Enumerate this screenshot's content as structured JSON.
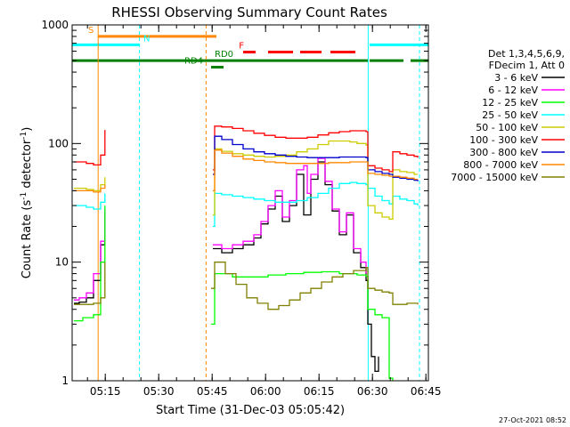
{
  "chart_data": {
    "type": "line",
    "title": "RHESSI Observing Summary Count Rates",
    "xlabel": "Start Time (31-Dec-03 05:05:42)",
    "ylabel_main": "Count Rate (s",
    "ylabel_sup1": "-1",
    "ylabel_mid": " detector",
    "ylabel_sup2": "-1",
    "ylabel_end": ")",
    "yscale": "log",
    "x_unit": "minutes after 05:05:42",
    "xlim": [
      0,
      100
    ],
    "ylim": [
      1,
      1000
    ],
    "x_ticks": [
      {
        "label": "05:15",
        "x": 9.3
      },
      {
        "label": "05:30",
        "x": 24.3
      },
      {
        "label": "05:45",
        "x": 39.3
      },
      {
        "label": "06:00",
        "x": 54.3
      },
      {
        "label": "06:15",
        "x": 69.3
      },
      {
        "label": "06:30",
        "x": 84.3
      },
      {
        "label": "06:45",
        "x": 99.3
      }
    ],
    "y_ticks": [
      {
        "label": "1",
        "value": 1
      },
      {
        "label": "10",
        "value": 10
      },
      {
        "label": "100",
        "value": 100
      },
      {
        "label": "1000",
        "value": 1000
      }
    ],
    "legend_header": [
      "Det 1,3,4,5,6,9,",
      "FDecim 1, Att 0"
    ],
    "series": [
      {
        "name": "3 - 6 keV",
        "color": "#000000",
        "x": [
          0.5,
          2,
          4,
          6,
          8,
          9.2,
          39.5,
          42,
          45,
          48,
          51,
          53,
          55,
          57,
          59,
          61,
          63,
          65,
          67,
          69,
          71,
          73,
          75,
          77,
          79,
          81,
          82.5,
          83,
          84,
          85,
          86
        ],
        "values": [
          4.5,
          4.6,
          5,
          7,
          14,
          26,
          13,
          12,
          13,
          14,
          16,
          21,
          28,
          36,
          22,
          30,
          55,
          25,
          50,
          70,
          45,
          27,
          17,
          25,
          12,
          9,
          7,
          3,
          1.6,
          1.2,
          1.6
        ]
      },
      {
        "name": "6 - 12 keV",
        "color": "#ff00ff",
        "x": [
          0.5,
          2,
          4,
          6,
          8,
          9.2,
          39.5,
          42,
          45,
          48,
          51,
          53,
          55,
          57,
          59,
          61,
          63,
          65,
          66,
          67,
          69,
          71,
          73,
          75,
          77,
          79,
          81,
          82.5
        ],
        "values": [
          4.8,
          5,
          5.5,
          8,
          15,
          28,
          14,
          13,
          14,
          15,
          17,
          22,
          30,
          40,
          24,
          33,
          60,
          65,
          38,
          55,
          75,
          48,
          28,
          18,
          26,
          13,
          10,
          8
        ]
      },
      {
        "name": "12 - 25 keV",
        "color": "#00ff00",
        "x": [
          0.5,
          3,
          6,
          8,
          9.2,
          39,
          40,
          45,
          50,
          55,
          60,
          65,
          70,
          75,
          78,
          80,
          82.5,
          83,
          85,
          87,
          89,
          90
        ],
        "values": [
          3.2,
          3.4,
          3.6,
          10,
          30,
          3,
          8,
          7.5,
          7.5,
          7.8,
          8,
          8.2,
          8.3,
          8,
          8,
          7.8,
          7.6,
          4,
          3.6,
          3.4,
          1.05,
          1
        ]
      },
      {
        "name": "25 - 50 keV",
        "color": "#00ffff",
        "x": [
          0.5,
          2,
          4,
          6,
          8,
          9.2,
          39.5,
          40,
          42,
          45,
          48,
          51,
          54,
          57,
          60,
          63,
          66,
          69,
          72,
          75,
          78,
          80,
          82.5,
          83,
          85,
          87,
          89,
          90,
          92,
          94,
          96,
          97
        ],
        "values": [
          30,
          30,
          29,
          28,
          32,
          38,
          20,
          38,
          37,
          36,
          35,
          34,
          33,
          32,
          32,
          33,
          35,
          38,
          42,
          46,
          47,
          46,
          45,
          42,
          36,
          33,
          31,
          36,
          34,
          33,
          31,
          30
        ]
      },
      {
        "name": "50 - 100 keV",
        "color": "#cccc00",
        "x": [
          0.5,
          2,
          4,
          6,
          8,
          9.2,
          39.5,
          40,
          42,
          45,
          48,
          51,
          54,
          57,
          60,
          63,
          66,
          69,
          72,
          75,
          78,
          80,
          82.5,
          83,
          85,
          87,
          89,
          90,
          92,
          94,
          96,
          97
        ],
        "values": [
          42,
          42,
          41,
          40,
          45,
          52,
          25,
          90,
          86,
          82,
          80,
          78,
          77,
          78,
          80,
          85,
          90,
          98,
          105,
          105,
          103,
          100,
          97,
          30,
          26,
          24,
          23,
          60,
          58,
          57,
          55,
          55
        ]
      },
      {
        "name": "100 - 300 keV",
        "color": "#ff0000",
        "x": [
          0.5,
          2,
          4,
          6,
          8,
          9.2,
          39.5,
          40,
          42,
          45,
          48,
          51,
          54,
          57,
          60,
          63,
          66,
          69,
          72,
          75,
          78,
          80,
          82.5,
          83,
          85,
          87,
          89,
          90,
          92,
          94,
          96,
          97
        ],
        "values": [
          70,
          70,
          68,
          66,
          80,
          130,
          60,
          140,
          138,
          134,
          128,
          122,
          117,
          113,
          111,
          111,
          113,
          118,
          123,
          126,
          128,
          128,
          126,
          65,
          62,
          60,
          58,
          85,
          82,
          80,
          78,
          76
        ]
      },
      {
        "name": "300 - 800 keV",
        "color": "#0000cc",
        "x": [
          39.5,
          40,
          42,
          45,
          48,
          51,
          54,
          57,
          60,
          63,
          66,
          69,
          72,
          75,
          78,
          80,
          82.5,
          83,
          85,
          87,
          89,
          90,
          92,
          94,
          96,
          97
        ],
        "values": [
          55,
          115,
          108,
          98,
          90,
          85,
          82,
          80,
          78,
          77,
          76,
          76,
          76,
          77,
          77,
          77,
          76,
          60,
          58,
          56,
          55,
          52,
          51,
          50,
          49,
          48
        ]
      },
      {
        "name": "800 - 7000 keV",
        "color": "#ff8800",
        "x": [
          0.5,
          2,
          4,
          6,
          8,
          9.2,
          39.5,
          40,
          42,
          45,
          48,
          51,
          54,
          57,
          60,
          63,
          66,
          69,
          72,
          75,
          78,
          80,
          82.5,
          83,
          85,
          87,
          89,
          90,
          92,
          94,
          96,
          97
        ],
        "values": [
          40,
          40,
          40,
          39,
          42,
          45,
          40,
          88,
          83,
          78,
          74,
          72,
          70,
          69,
          68,
          68,
          68,
          68,
          69,
          69,
          70,
          70,
          70,
          56,
          55,
          54,
          53,
          53,
          52,
          51,
          50,
          50
        ]
      },
      {
        "name": "7000 - 15000 keV",
        "color": "#808000",
        "x": [
          0.5,
          3,
          6,
          8,
          9.2,
          39,
          40,
          43,
          46,
          49,
          52,
          55,
          58,
          61,
          64,
          67,
          70,
          73,
          76,
          79,
          82.5,
          83,
          85,
          87,
          89,
          90,
          92,
          94,
          96,
          97
        ],
        "values": [
          4.4,
          4.4,
          4.5,
          5,
          10,
          6,
          10,
          8,
          6.5,
          5,
          4.5,
          4,
          4.3,
          4.8,
          5.5,
          6,
          6.8,
          7.5,
          8,
          8.5,
          9,
          6,
          5.8,
          5.6,
          5.5,
          4.4,
          4.4,
          4.5,
          4.5,
          4.4
        ]
      }
    ],
    "flags": [
      {
        "label": "S",
        "color": "#ff8800",
        "y_value": 800,
        "segments": [
          [
            7.2,
            40.5
          ]
        ],
        "label_x": 4.5,
        "dashed": false
      },
      {
        "label": "N",
        "color": "#00ffff",
        "y_value": 680,
        "segments": [
          [
            0,
            19
          ],
          [
            83.5,
            100
          ]
        ],
        "label_x": 20,
        "dashed": false
      },
      {
        "label": "F",
        "color": "#ff0000",
        "y_value": 590,
        "segments": [
          [
            48,
            51.5
          ],
          [
            55,
            62
          ],
          [
            64,
            70
          ],
          [
            72.5,
            79.5
          ]
        ],
        "label_x": 46.8,
        "dashed": false
      },
      {
        "label": "RD0",
        "color": "#008000",
        "y_value": 500,
        "segments": [
          [
            0,
            83
          ],
          [
            83.5,
            93
          ],
          [
            95,
            100
          ]
        ],
        "label_x": 40,
        "dashed": false
      },
      {
        "label": "RD4",
        "color": "#008000",
        "y_value": 440,
        "segments": [
          [
            39,
            42.5
          ]
        ],
        "label_x": 31.5,
        "dashed": false
      }
    ],
    "vertical_lines": [
      {
        "x": 7.3,
        "color": "#ff8800",
        "dashed": false
      },
      {
        "x": 18.9,
        "color": "#00ffff",
        "dashed": true
      },
      {
        "x": 37.6,
        "color": "#ff8800",
        "dashed": true
      },
      {
        "x": 83.1,
        "color": "#00ffff",
        "dashed": false
      },
      {
        "x": 97.5,
        "color": "#00ffff",
        "dashed": true
      }
    ],
    "timestamp": "27-Oct-2021 08:52"
  }
}
